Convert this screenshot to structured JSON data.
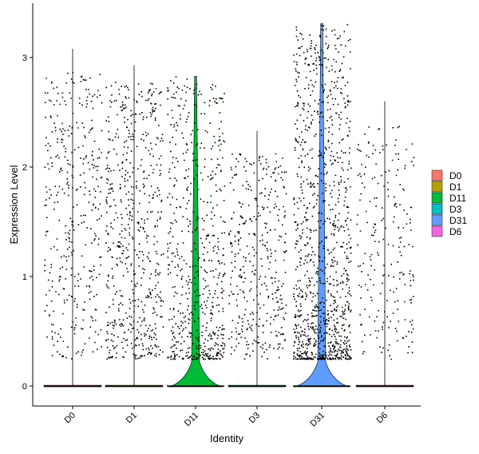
{
  "chart_data": {
    "type": "violin",
    "title": "",
    "xlabel": "Identity",
    "ylabel": "Expression Level",
    "ylim": [
      -0.18,
      3.38
    ],
    "yticks": [
      0,
      1,
      2,
      3
    ],
    "grid": false,
    "legend_position": "right",
    "categories": [
      "D0",
      "D1",
      "D11",
      "D3",
      "D31",
      "D6"
    ],
    "colors": [
      "#F8766D",
      "#B79F00",
      "#00BA38",
      "#00BFC4",
      "#619CFF",
      "#F564E3"
    ],
    "groups": [
      {
        "name": "D0",
        "max": 3.08,
        "point_density": "medium",
        "zero_fraction_high": true
      },
      {
        "name": "D1",
        "max": 2.93,
        "point_density": "high",
        "zero_fraction_high": true
      },
      {
        "name": "D11",
        "max": 2.83,
        "point_density": "high",
        "violin_peak_width": 0.45
      },
      {
        "name": "D3",
        "max": 2.33,
        "point_density": "medium",
        "zero_fraction_high": true
      },
      {
        "name": "D31",
        "max": 3.31,
        "point_density": "very high",
        "violin_peak_width": 0.48
      },
      {
        "name": "D6",
        "max": 2.6,
        "point_density": "low",
        "zero_fraction_high": true
      }
    ]
  },
  "legend": {
    "items": [
      {
        "label": "D0",
        "color": "#F8766D"
      },
      {
        "label": "D1",
        "color": "#B79F00"
      },
      {
        "label": "D11",
        "color": "#00BA38"
      },
      {
        "label": "D3",
        "color": "#00BFC4"
      },
      {
        "label": "D31",
        "color": "#619CFF"
      },
      {
        "label": "D6",
        "color": "#F564E3"
      }
    ]
  }
}
